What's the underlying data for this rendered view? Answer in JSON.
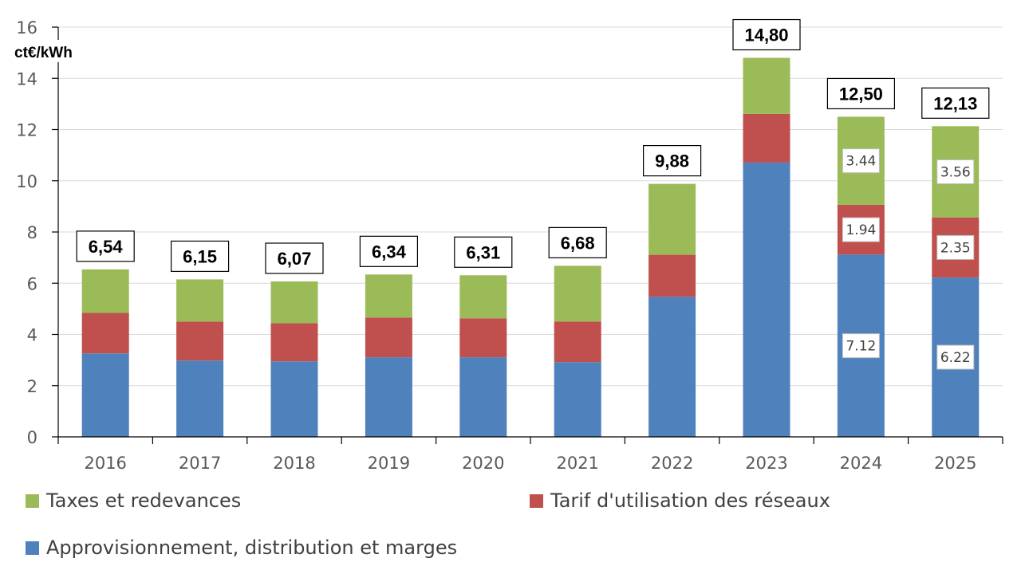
{
  "chart_data": {
    "type": "bar",
    "stacked": true,
    "title": "",
    "ylabel": "ct€/kWh",
    "xlabel": "",
    "ylim": [
      0,
      16
    ],
    "yticks": [
      0,
      2,
      4,
      6,
      8,
      10,
      12,
      14,
      16
    ],
    "grid": true,
    "legend_position": "bottom",
    "categories": [
      "2016",
      "2017",
      "2018",
      "2019",
      "2020",
      "2021",
      "2022",
      "2023",
      "2024",
      "2025"
    ],
    "series": [
      {
        "name": "Approvisionnement, distribution et marges",
        "color": "#4F81BD",
        "values": [
          3.26,
          2.98,
          2.95,
          3.11,
          3.11,
          2.92,
          5.47,
          10.71,
          7.12,
          6.22
        ],
        "labels": [
          null,
          null,
          null,
          null,
          null,
          null,
          null,
          null,
          "7.12",
          "6.22"
        ]
      },
      {
        "name": "Tarif d'utilisation des réseaux",
        "color": "#C0504D",
        "values": [
          1.58,
          1.52,
          1.49,
          1.55,
          1.52,
          1.58,
          1.64,
          1.9,
          1.94,
          2.35
        ],
        "labels": [
          null,
          null,
          null,
          null,
          null,
          null,
          null,
          null,
          "1.94",
          "2.35"
        ]
      },
      {
        "name": "Taxes et redevances",
        "color": "#9BBB59",
        "values": [
          1.7,
          1.65,
          1.63,
          1.68,
          1.68,
          2.18,
          2.77,
          2.19,
          3.44,
          3.56
        ],
        "labels": [
          null,
          null,
          null,
          null,
          null,
          null,
          null,
          null,
          "3.44",
          "3.56"
        ]
      }
    ],
    "totals": [
      6.54,
      6.15,
      6.07,
      6.34,
      6.31,
      6.68,
      9.88,
      14.8,
      12.5,
      12.13
    ],
    "total_labels": [
      "6,54",
      "6,15",
      "6,07",
      "6,34",
      "6,31",
      "6,68",
      "9,88",
      "14,80",
      "12,50",
      "12,13"
    ]
  },
  "legend": {
    "items": [
      {
        "label": "Taxes et redevances",
        "color": "#9BBB59"
      },
      {
        "label": "Tarif d'utilisation des réseaux",
        "color": "#C0504D"
      },
      {
        "label": "Approvisionnement, distribution et marges",
        "color": "#4F81BD"
      }
    ]
  }
}
